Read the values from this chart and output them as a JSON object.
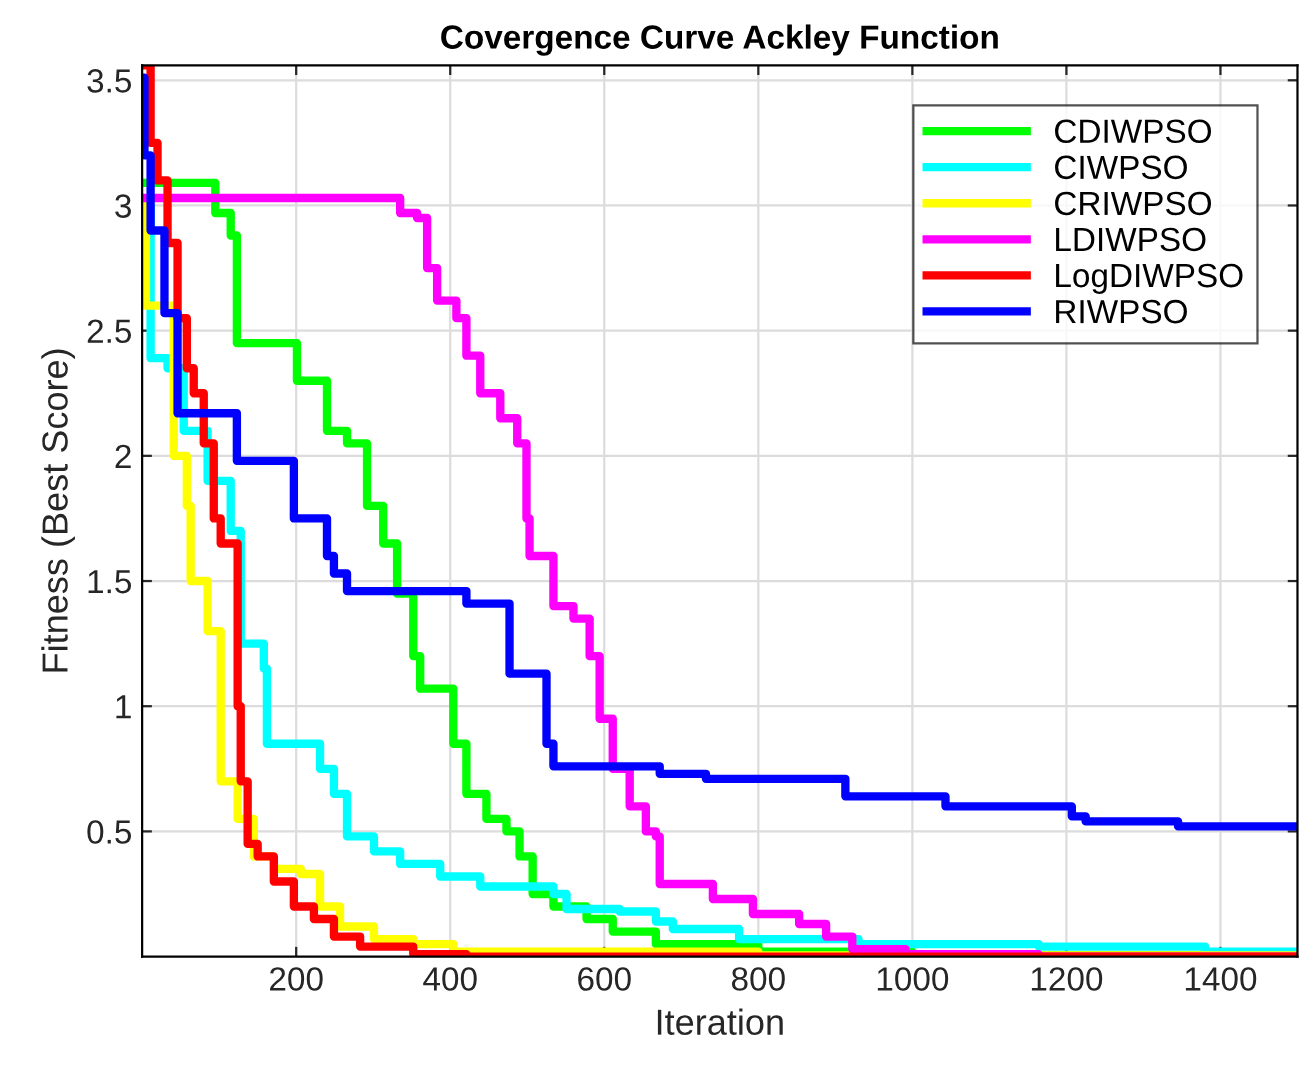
{
  "chart_data": {
    "type": "step",
    "title": "Covergence Curve Ackley Function",
    "xlabel": "Iteration",
    "ylabel": "Fitness (Best Score)",
    "xlim": [
      0,
      1500
    ],
    "ylim": [
      0,
      3.56
    ],
    "xticks": [
      200,
      400,
      600,
      800,
      1000,
      1200,
      1400
    ],
    "yticks": [
      0.5,
      1,
      1.5,
      2,
      2.5,
      3,
      3.5
    ],
    "grid": true,
    "legend": "top right",
    "line_style": "solid",
    "marker": "none",
    "series": [
      {
        "name": "CDIWPSO",
        "color": "#00ff00",
        "x": [
          0,
          85,
          95,
          115,
          123,
          188,
          201,
          223,
          240,
          266,
          292,
          313,
          331,
          352,
          361,
          378,
          404,
          421,
          447,
          473,
          490,
          507,
          534,
          577,
          611,
          667,
          800,
          1000,
          1500
        ],
        "values": [
          3.09,
          3.09,
          2.97,
          2.88,
          2.45,
          2.45,
          2.3,
          2.3,
          2.1,
          2.05,
          1.8,
          1.65,
          1.45,
          1.2,
          1.07,
          1.07,
          0.85,
          0.65,
          0.55,
          0.5,
          0.4,
          0.25,
          0.2,
          0.15,
          0.1,
          0.05,
          0.02,
          0.005,
          0
        ]
      },
      {
        "name": "CIWPSO",
        "color": "#00ffff",
        "x": [
          0,
          11,
          33,
          54,
          85,
          115,
          128,
          158,
          162,
          197,
          231,
          249,
          266,
          301,
          335,
          387,
          439,
          534,
          551,
          620,
          667,
          689,
          775,
          930,
          1164,
          1380,
          1500
        ],
        "values": [
          3.0,
          2.39,
          2.35,
          2.1,
          1.9,
          1.7,
          1.25,
          1.15,
          0.85,
          0.85,
          0.75,
          0.65,
          0.48,
          0.42,
          0.37,
          0.32,
          0.28,
          0.25,
          0.19,
          0.18,
          0.14,
          0.11,
          0.07,
          0.05,
          0.04,
          0.02,
          0.02
        ]
      },
      {
        "name": "CRIWPSO",
        "color": "#ffff00",
        "x": [
          0,
          5,
          41,
          58,
          63,
          85,
          102,
          124,
          145,
          171,
          206,
          231,
          257,
          301,
          352,
          404,
          800,
          1500
        ],
        "values": [
          3.0,
          2.6,
          2.0,
          1.8,
          1.5,
          1.3,
          0.7,
          0.55,
          0.4,
          0.35,
          0.33,
          0.2,
          0.12,
          0.07,
          0.05,
          0.02,
          0.005,
          0
        ]
      },
      {
        "name": "LDIWPSO",
        "color": "#ff00ff",
        "x": [
          0,
          331,
          335,
          357,
          370,
          383,
          408,
          421,
          439,
          465,
          487,
          499,
          503,
          534,
          560,
          581,
          594,
          611,
          633,
          654,
          667,
          672,
          724,
          741,
          793,
          853,
          888,
          922,
          991,
          1164,
          1500
        ],
        "values": [
          3.03,
          3.03,
          2.97,
          2.95,
          2.75,
          2.62,
          2.55,
          2.4,
          2.25,
          2.15,
          2.05,
          1.75,
          1.6,
          1.4,
          1.35,
          1.2,
          0.95,
          0.75,
          0.6,
          0.5,
          0.48,
          0.29,
          0.29,
          0.23,
          0.17,
          0.13,
          0.08,
          0.03,
          0.01,
          0,
          0
        ]
      },
      {
        "name": "LogDIWPSO",
        "color": "#ff0000",
        "x": [
          0,
          11,
          20,
          33,
          46,
          58,
          67,
          80,
          93,
          102,
          124,
          128,
          137,
          150,
          171,
          197,
          223,
          249,
          283,
          352,
          421,
          1500
        ],
        "values": [
          3.56,
          3.25,
          3.1,
          2.85,
          2.55,
          2.35,
          2.25,
          2.05,
          1.75,
          1.65,
          1.0,
          0.7,
          0.45,
          0.4,
          0.3,
          0.2,
          0.15,
          0.08,
          0.04,
          0.01,
          0,
          0
        ]
      },
      {
        "name": "RIWPSO",
        "color": "#0000ff",
        "x": [
          0,
          3,
          11,
          29,
          46,
          123,
          197,
          240,
          249,
          266,
          296,
          421,
          477,
          525,
          534,
          672,
          732,
          913,
          1043,
          1207,
          1225,
          1345,
          1500
        ],
        "values": [
          3.51,
          3.2,
          2.9,
          2.57,
          2.17,
          1.98,
          1.75,
          1.6,
          1.53,
          1.46,
          1.46,
          1.41,
          1.13,
          0.85,
          0.76,
          0.73,
          0.71,
          0.64,
          0.6,
          0.56,
          0.54,
          0.52,
          0.52
        ]
      }
    ]
  }
}
